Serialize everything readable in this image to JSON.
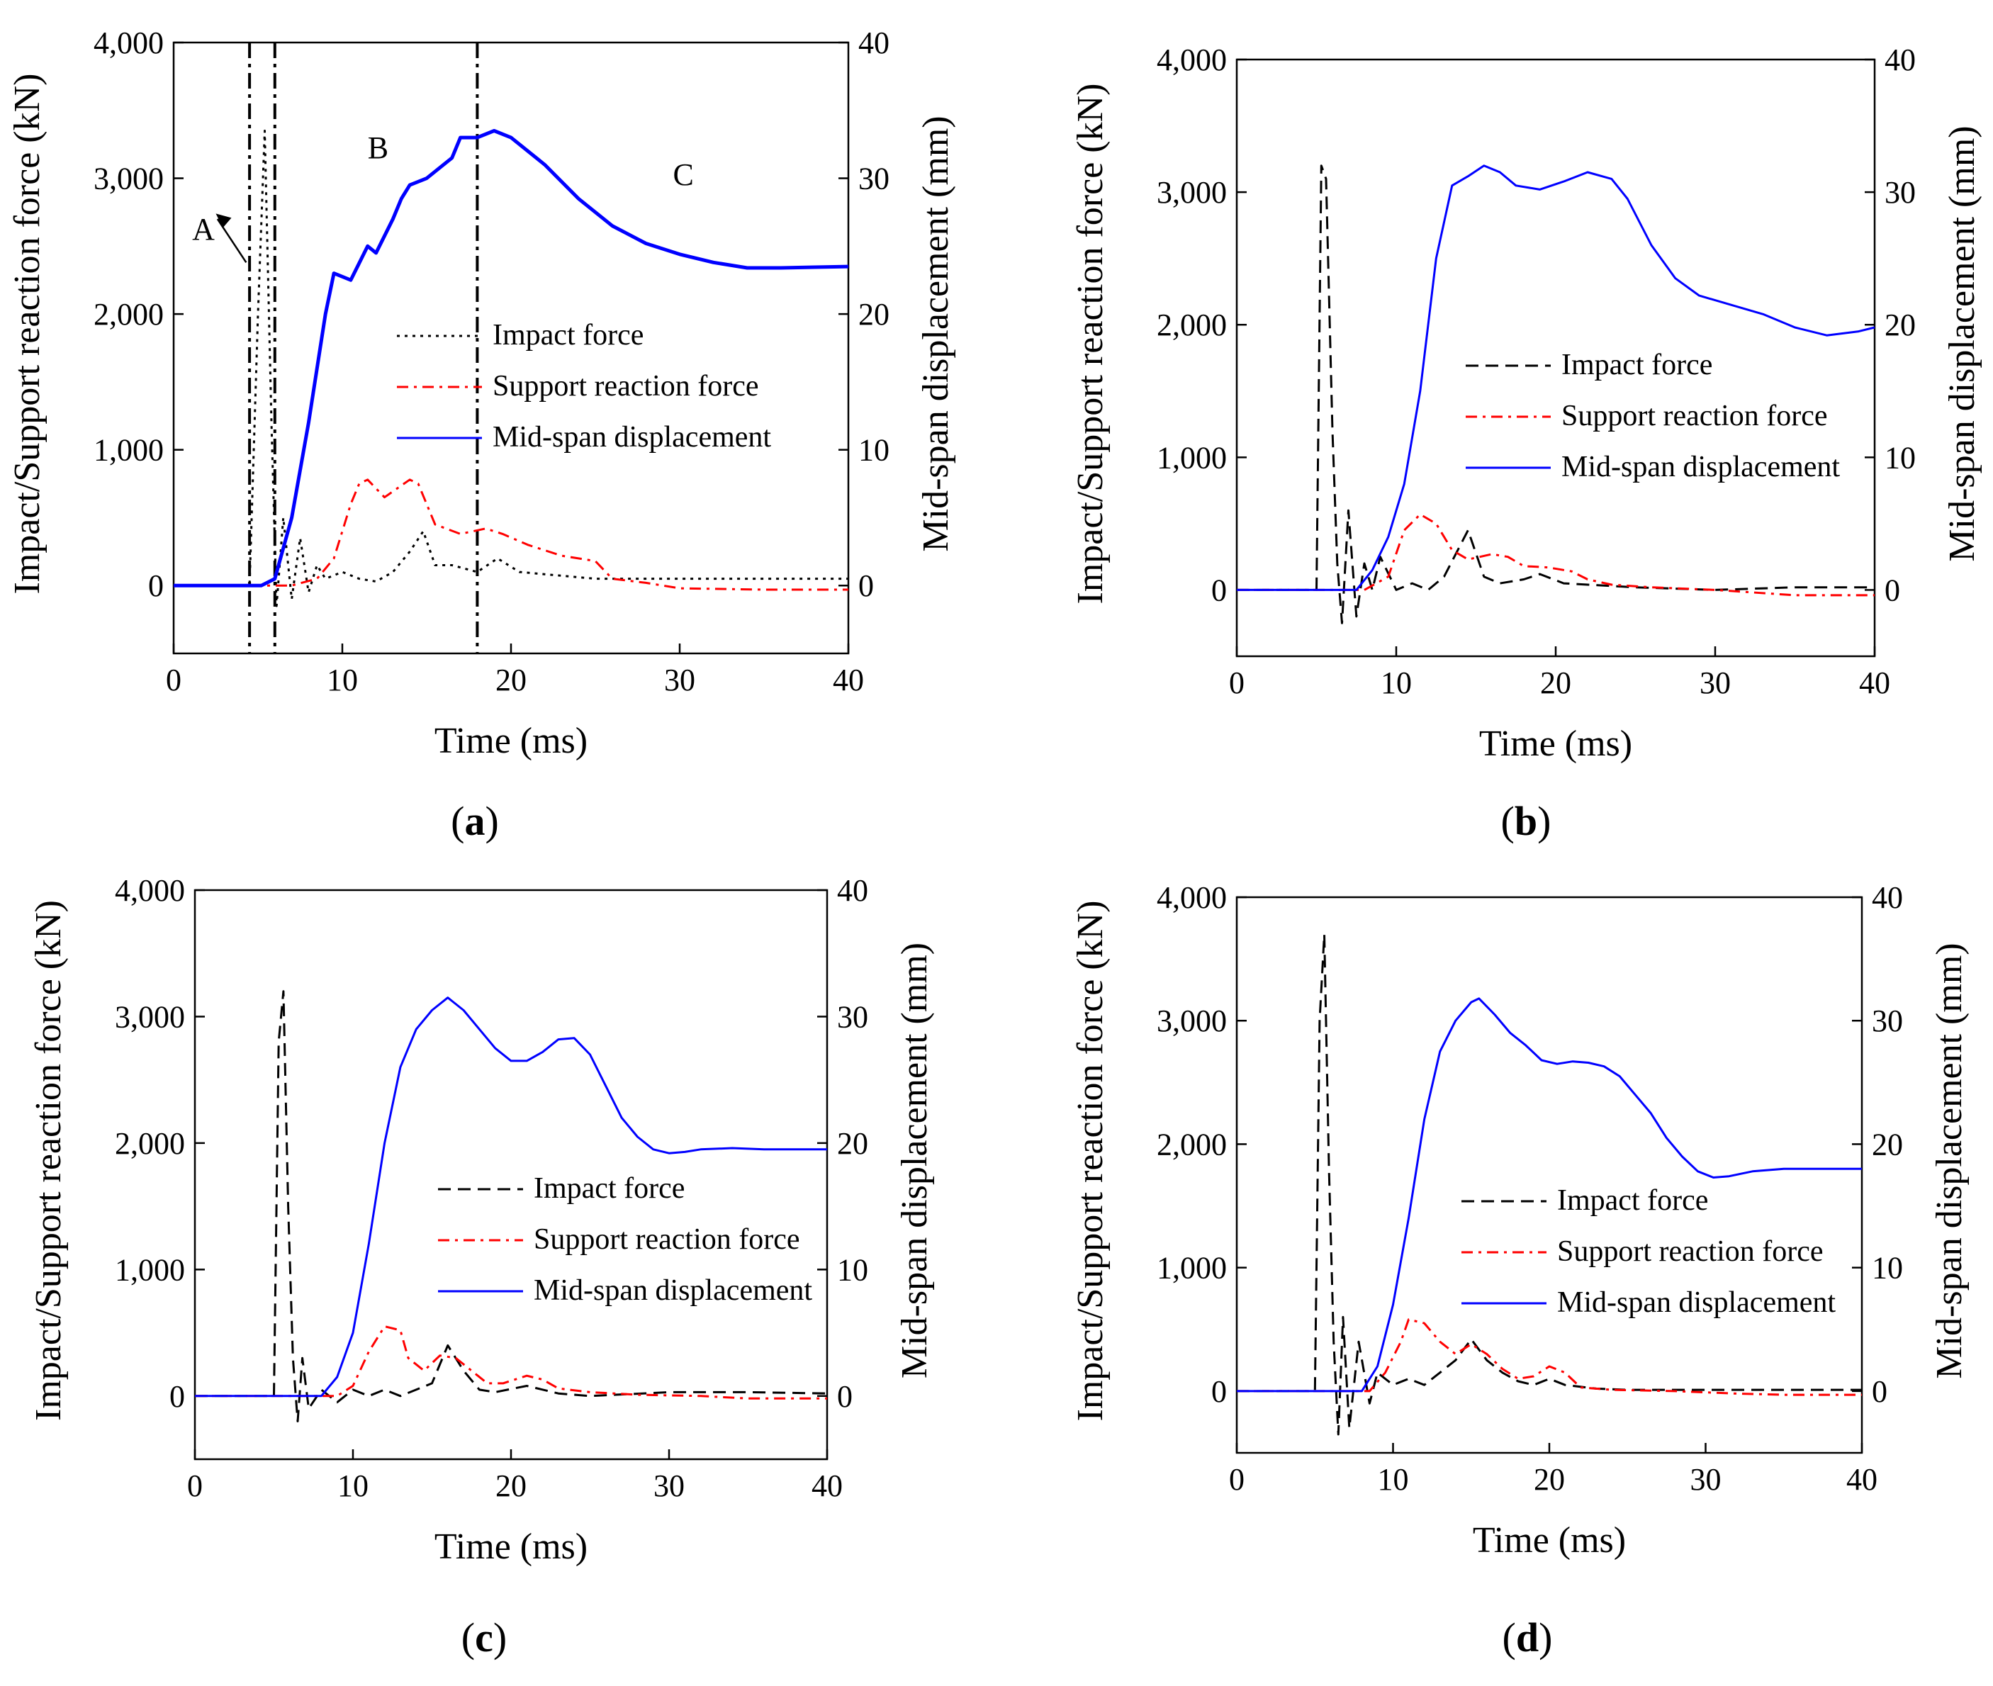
{
  "chart_data": [
    {
      "type": "line",
      "panel_label": "a",
      "xlabel": "Time (ms)",
      "ylabel_left": "Impact/Support reaction force (kN)",
      "ylabel_right": "Mid-span displacement (mm)",
      "xlim": [
        0,
        40
      ],
      "ylim_left": [
        -500,
        4000
      ],
      "ylim_right": [
        -5,
        40
      ],
      "xticks": [
        "0",
        "10",
        "20",
        "30",
        "40"
      ],
      "yticks_left": [
        "0",
        "1,000",
        "2,000",
        "3,000",
        "4,000"
      ],
      "yticks_right": [
        "0",
        "10",
        "20",
        "30",
        "40"
      ],
      "legend": [
        "Impact force",
        "Support reaction force",
        "Mid-span displacement"
      ],
      "annotations": {
        "phase_a": "A",
        "phase_b": "B",
        "phase_c": "C",
        "vlines_ms": [
          4.5,
          6.0,
          18.0
        ]
      },
      "series": [
        {
          "name": "Impact force",
          "axis": "left",
          "color": "#000000",
          "style": "dotted",
          "x": [
            0,
            4.5,
            5.0,
            5.4,
            5.8,
            6.1,
            6.5,
            7.0,
            7.5,
            8.0,
            8.5,
            9.0,
            10.0,
            11.0,
            12.0,
            13.0,
            14.0,
            14.8,
            15.5,
            16.5,
            18.0,
            19.2,
            20.5,
            25,
            30,
            35,
            40
          ],
          "y": [
            0,
            0,
            2000,
            3350,
            1200,
            -150,
            500,
            -100,
            350,
            -50,
            150,
            50,
            100,
            50,
            30,
            100,
            250,
            400,
            150,
            150,
            100,
            200,
            100,
            50,
            50,
            50,
            50
          ]
        },
        {
          "name": "Support reaction force",
          "axis": "left",
          "color": "#ff0000",
          "style": "dashdot",
          "x": [
            0,
            7.0,
            8.5,
            9.5,
            10.5,
            11.0,
            11.5,
            12.5,
            14.0,
            14.5,
            15.5,
            17.0,
            18.5,
            19.5,
            21.0,
            23.0,
            25.0,
            26.0,
            28.0,
            30.0,
            35.0,
            40.0
          ],
          "y": [
            0,
            0,
            50,
            200,
            600,
            750,
            780,
            650,
            780,
            750,
            450,
            380,
            420,
            380,
            300,
            220,
            180,
            50,
            20,
            -20,
            -30,
            -30
          ]
        },
        {
          "name": "Mid-span displacement",
          "axis": "right",
          "color": "#0000ff",
          "style": "solid",
          "x": [
            0,
            5.2,
            6.0,
            7.0,
            8.0,
            9.0,
            9.5,
            10.5,
            11.5,
            12.0,
            13.0,
            13.5,
            14.0,
            15.0,
            16.5,
            17.0,
            18.0,
            19.0,
            20.0,
            22.0,
            24.0,
            26.0,
            28.0,
            30.0,
            32.0,
            34.0,
            36.0,
            40.0
          ],
          "y": [
            0,
            0,
            0.5,
            5,
            12,
            20,
            23,
            22.5,
            25,
            24.5,
            27,
            28.5,
            29.5,
            30,
            31.5,
            33,
            33,
            33.5,
            33,
            31,
            28.5,
            26.5,
            25.2,
            24.4,
            23.8,
            23.4,
            23.4,
            23.5
          ]
        }
      ]
    },
    {
      "type": "line",
      "panel_label": "b",
      "xlabel": "Time (ms)",
      "ylabel_left": "Impact/Support reaction force (kN)",
      "ylabel_right": "Mid-span displacement (mm)",
      "xlim": [
        0,
        40
      ],
      "ylim_left": [
        -500,
        4000
      ],
      "ylim_right": [
        -5,
        40
      ],
      "xticks": [
        "0",
        "10",
        "20",
        "30",
        "40"
      ],
      "yticks_left": [
        "0",
        "1,000",
        "2,000",
        "3,000",
        "4,000"
      ],
      "yticks_right": [
        "0",
        "10",
        "20",
        "30",
        "40"
      ],
      "legend": [
        "Impact force",
        "Support reaction force",
        "Mid-span displacement"
      ],
      "series": [
        {
          "name": "Impact force",
          "axis": "left",
          "color": "#000000",
          "style": "dashed",
          "x": [
            0,
            5.0,
            5.3,
            5.6,
            6.0,
            6.3,
            6.6,
            7.0,
            7.5,
            8.0,
            8.5,
            9.0,
            10.0,
            11.0,
            12.0,
            13.0,
            14.5,
            15.5,
            16.5,
            18.0,
            19.0,
            20.5,
            25,
            30,
            35,
            40
          ],
          "y": [
            0,
            0,
            3200,
            3100,
            1200,
            200,
            -250,
            600,
            -200,
            200,
            0,
            250,
            0,
            50,
            0,
            100,
            450,
            100,
            50,
            80,
            120,
            50,
            20,
            0,
            20,
            20
          ]
        },
        {
          "name": "Support reaction force",
          "axis": "left",
          "color": "#ff0000",
          "style": "dashdot",
          "x": [
            0,
            8.0,
            9.5,
            10.5,
            11.5,
            12.5,
            13.5,
            14.5,
            16.0,
            17.0,
            18.0,
            19.5,
            21.0,
            22.0,
            23.5,
            26.0,
            30.0,
            35.0,
            40.0
          ],
          "y": [
            0,
            0,
            100,
            450,
            570,
            500,
            300,
            230,
            270,
            250,
            180,
            170,
            140,
            80,
            40,
            20,
            0,
            -40,
            -40
          ]
        },
        {
          "name": "Mid-span displacement",
          "axis": "right",
          "color": "#0000ff",
          "style": "solid",
          "x": [
            0,
            7.5,
            8.5,
            9.5,
            10.5,
            11.5,
            12.5,
            13.5,
            14.5,
            15.5,
            16.5,
            17.5,
            19.0,
            20.5,
            22.0,
            23.5,
            24.5,
            26.0,
            27.5,
            29.0,
            31.0,
            33.0,
            35.0,
            37.0,
            39.0,
            40.0
          ],
          "y": [
            0,
            0,
            1.5,
            4,
            8,
            15,
            25,
            30.5,
            31.2,
            32,
            31.5,
            30.5,
            30.2,
            30.8,
            31.5,
            31,
            29.5,
            26,
            23.5,
            22.2,
            21.5,
            20.8,
            19.8,
            19.2,
            19.5,
            19.8
          ]
        }
      ]
    },
    {
      "type": "line",
      "panel_label": "c",
      "xlabel": "Time (ms)",
      "ylabel_left": "Impact/Support reaction force (kN)",
      "ylabel_right": "Mid-span displacement (mm)",
      "xlim": [
        0,
        40
      ],
      "ylim_left": [
        -500,
        4000
      ],
      "ylim_right": [
        -5,
        40
      ],
      "xticks": [
        "0",
        "10",
        "20",
        "30",
        "40"
      ],
      "yticks_left": [
        "0",
        "1,000",
        "2,000",
        "3,000",
        "4,000"
      ],
      "yticks_right": [
        "0",
        "10",
        "20",
        "30",
        "40"
      ],
      "legend": [
        "Impact force",
        "Support reaction force",
        "Mid-span displacement"
      ],
      "series": [
        {
          "name": "Impact force",
          "axis": "left",
          "color": "#000000",
          "style": "dashed",
          "x": [
            0,
            5.0,
            5.3,
            5.6,
            5.9,
            6.2,
            6.5,
            6.8,
            7.2,
            8.0,
            9.0,
            10.0,
            11.0,
            12.0,
            13.0,
            14.0,
            15.0,
            16.0,
            17.0,
            18.0,
            19.0,
            21.0,
            23.0,
            25.0,
            30.0,
            35.0,
            40.0
          ],
          "y": [
            0,
            0,
            2800,
            3200,
            1500,
            300,
            -200,
            300,
            -100,
            50,
            -50,
            50,
            0,
            50,
            0,
            50,
            100,
            400,
            200,
            50,
            30,
            80,
            20,
            0,
            30,
            30,
            20
          ]
        },
        {
          "name": "Support reaction force",
          "axis": "left",
          "color": "#ff0000",
          "style": "dashdot",
          "x": [
            0,
            9.0,
            10.0,
            11.0,
            12.0,
            13.0,
            13.5,
            14.5,
            15.5,
            16.5,
            17.5,
            18.5,
            19.5,
            21.0,
            22.0,
            23.0,
            25.0,
            28.0,
            32.0,
            35.0,
            40.0
          ],
          "y": [
            0,
            0,
            80,
            350,
            550,
            520,
            300,
            200,
            320,
            300,
            200,
            100,
            100,
            160,
            130,
            60,
            30,
            10,
            0,
            -20,
            -20
          ]
        },
        {
          "name": "Mid-span displacement",
          "axis": "right",
          "color": "#0000ff",
          "style": "solid",
          "x": [
            0,
            8.0,
            9.0,
            10.0,
            11.0,
            12.0,
            13.0,
            14.0,
            15.0,
            16.0,
            17.0,
            18.0,
            19.0,
            20.0,
            21.0,
            22.0,
            23.0,
            24.0,
            25.0,
            26.0,
            27.0,
            28.0,
            29.0,
            30.0,
            31.0,
            32.0,
            34.0,
            36.0,
            38.0,
            40.0
          ],
          "y": [
            0,
            0,
            1.5,
            5,
            12,
            20,
            26,
            29,
            30.5,
            31.5,
            30.5,
            29,
            27.5,
            26.5,
            26.5,
            27.2,
            28.2,
            28.3,
            27,
            24.5,
            22,
            20.5,
            19.5,
            19.2,
            19.3,
            19.5,
            19.6,
            19.5,
            19.5,
            19.5
          ]
        }
      ]
    },
    {
      "type": "line",
      "panel_label": "d",
      "xlabel": "Time (ms)",
      "ylabel_left": "Impact/Support reaction force (kN)",
      "ylabel_right": "Mid-span displacement (mm)",
      "xlim": [
        0,
        40
      ],
      "ylim_left": [
        -500,
        4000
      ],
      "ylim_right": [
        -5,
        40
      ],
      "xticks": [
        "0",
        "10",
        "20",
        "30",
        "40"
      ],
      "yticks_left": [
        "0",
        "1,000",
        "2,000",
        "3,000",
        "4,000"
      ],
      "yticks_right": [
        "0",
        "10",
        "20",
        "30",
        "40"
      ],
      "legend": [
        "Impact force",
        "Support reaction force",
        "Mid-span displacement"
      ],
      "series": [
        {
          "name": "Impact force",
          "axis": "left",
          "color": "#000000",
          "style": "dashed",
          "x": [
            0,
            5.0,
            5.3,
            5.6,
            5.9,
            6.2,
            6.5,
            6.8,
            7.2,
            7.8,
            8.5,
            9.0,
            10.0,
            11.0,
            12.0,
            13.0,
            14.0,
            15.0,
            16.0,
            17.0,
            18.0,
            19.0,
            20.0,
            21.0,
            23.0,
            25.0,
            30.0,
            40.0
          ],
          "y": [
            0,
            0,
            3000,
            3700,
            1800,
            400,
            -350,
            600,
            -300,
            400,
            -100,
            150,
            50,
            100,
            50,
            150,
            250,
            420,
            250,
            150,
            80,
            50,
            100,
            50,
            20,
            10,
            10,
            10
          ]
        },
        {
          "name": "Support reaction force",
          "axis": "left",
          "color": "#ff0000",
          "style": "dashdot",
          "x": [
            0,
            8.5,
            9.5,
            10.5,
            11.0,
            12.0,
            13.0,
            14.0,
            15.0,
            16.0,
            17.0,
            18.0,
            19.0,
            20.0,
            21.0,
            22.0,
            24.0,
            28.0,
            32.0,
            35.0,
            40.0
          ],
          "y": [
            0,
            0,
            150,
            400,
            580,
            550,
            400,
            300,
            380,
            300,
            180,
            100,
            120,
            200,
            150,
            30,
            10,
            0,
            -20,
            -30,
            -30
          ]
        },
        {
          "name": "Mid-span displacement",
          "axis": "right",
          "color": "#0000ff",
          "style": "solid",
          "x": [
            0,
            8.0,
            9.0,
            10.0,
            11.0,
            12.0,
            13.0,
            14.0,
            15.0,
            15.5,
            16.5,
            17.5,
            18.5,
            19.5,
            20.5,
            21.5,
            22.5,
            23.5,
            24.5,
            25.5,
            26.5,
            27.5,
            28.5,
            29.5,
            30.5,
            31.5,
            33.0,
            35.0,
            40.0
          ],
          "y": [
            0,
            0,
            2,
            7,
            14,
            22,
            27.5,
            30,
            31.5,
            31.8,
            30.5,
            29,
            28,
            26.8,
            26.5,
            26.7,
            26.6,
            26.3,
            25.5,
            24,
            22.5,
            20.5,
            19,
            17.8,
            17.3,
            17.4,
            17.8,
            18,
            18
          ]
        }
      ]
    }
  ]
}
